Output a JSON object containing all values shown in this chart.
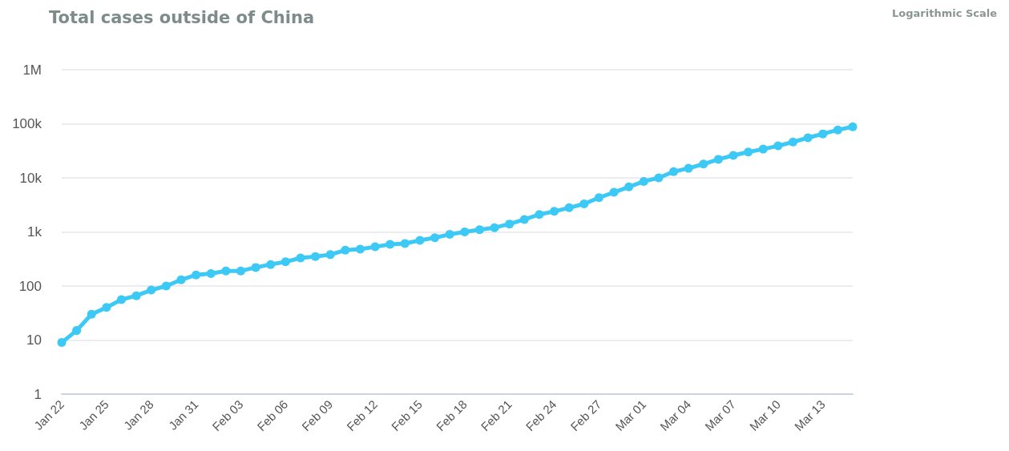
{
  "chart_data": {
    "type": "line",
    "title": "Total cases outside of China",
    "annotations": [
      "Logarithmic Scale"
    ],
    "categories": [
      "Jan 22",
      null,
      null,
      "Jan 25",
      null,
      null,
      "Jan 28",
      null,
      null,
      "Jan 31",
      null,
      null,
      "Feb 03",
      null,
      null,
      "Feb 06",
      null,
      null,
      "Feb 09",
      null,
      null,
      "Feb 12",
      null,
      null,
      "Feb 15",
      null,
      null,
      "Feb 18",
      null,
      null,
      "Feb 21",
      null,
      null,
      "Feb 24",
      null,
      null,
      "Feb 27",
      null,
      null,
      "Mar 01",
      null,
      null,
      "Mar 04",
      null,
      null,
      "Mar 07",
      null,
      null,
      "Mar 10",
      null,
      null,
      "Mar 13",
      null,
      null
    ],
    "series": [
      {
        "color": "#3dc9f5",
        "values": [
          9,
          15,
          30,
          40,
          56,
          66,
          84,
          100,
          130,
          160,
          170,
          190,
          190,
          220,
          250,
          280,
          330,
          350,
          380,
          460,
          480,
          530,
          590,
          610,
          700,
          780,
          900,
          1000,
          1100,
          1200,
          1400,
          1700,
          2100,
          2400,
          2800,
          3300,
          4300,
          5400,
          6800,
          8600,
          10000,
          13000,
          15000,
          18000,
          22000,
          26000,
          30000,
          34000,
          39000,
          46000,
          55000,
          65000,
          77000,
          88000
        ]
      }
    ],
    "log": "y",
    "ylim": [
      1,
      1000000
    ],
    "yticks": [
      1,
      10,
      100,
      {
        "value": 1000,
        "label": "1k"
      },
      {
        "value": 10000,
        "label": "10k"
      },
      {
        "value": 100000,
        "label": "100k"
      },
      {
        "value": 1000000,
        "label": "1M"
      }
    ],
    "grid": "y",
    "marker": "circle",
    "line_style": "solid"
  }
}
